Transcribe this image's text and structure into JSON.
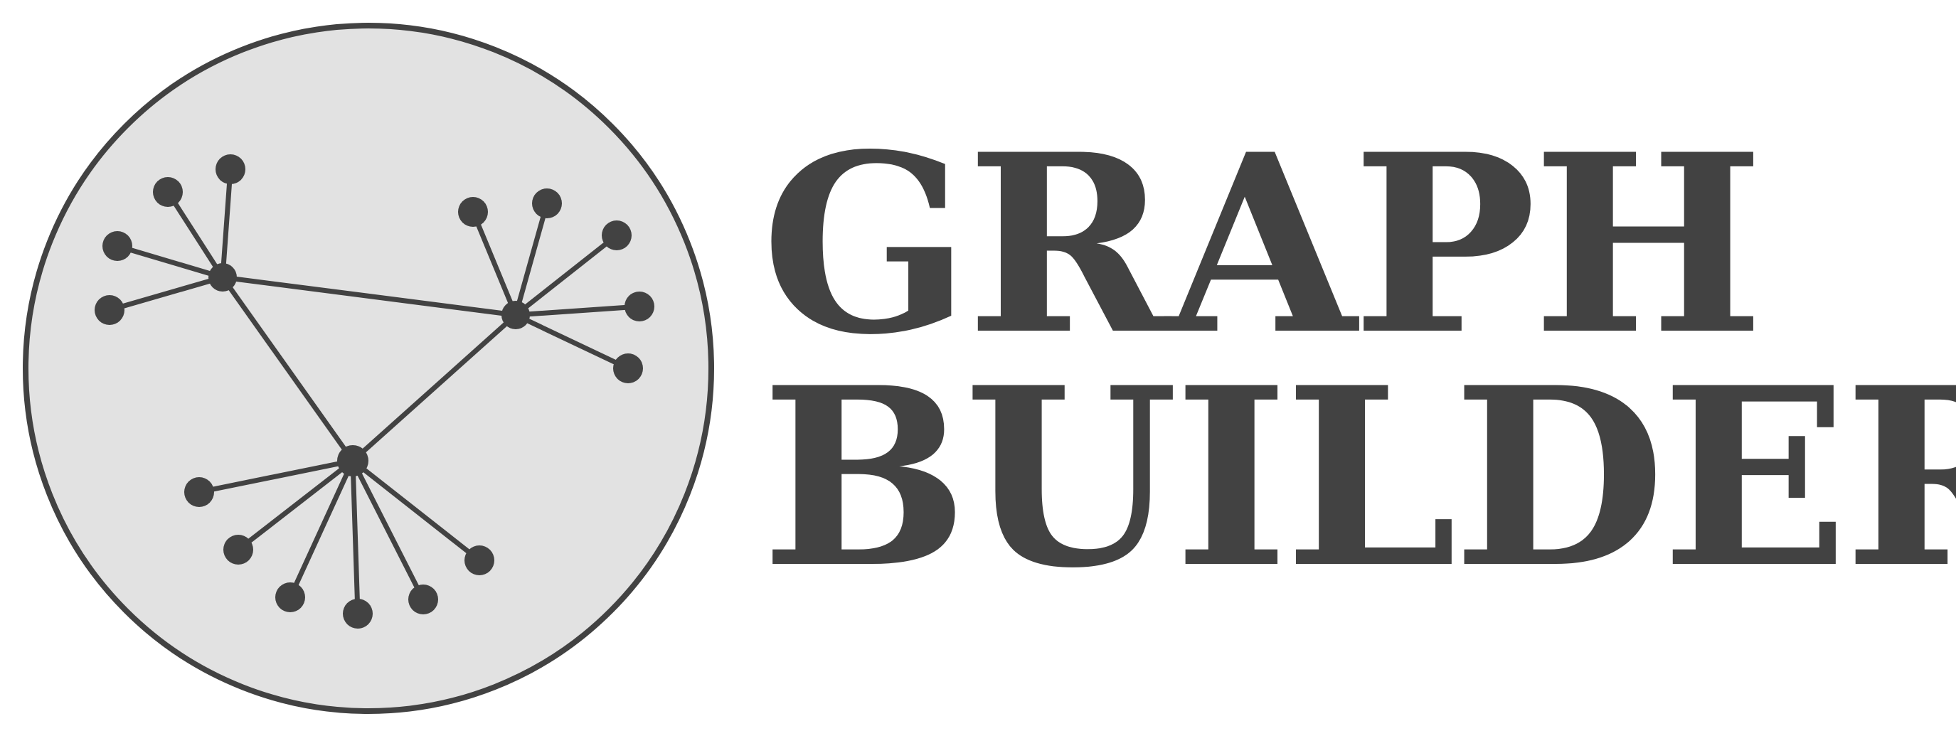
{
  "logo": {
    "title_line1": "GRAPH",
    "title_line2": "BUILDER",
    "icon": "network-graph-icon",
    "colors": {
      "ink": "#424242",
      "emblem_fill": "#e2e2e2",
      "background": "#ffffff"
    }
  }
}
